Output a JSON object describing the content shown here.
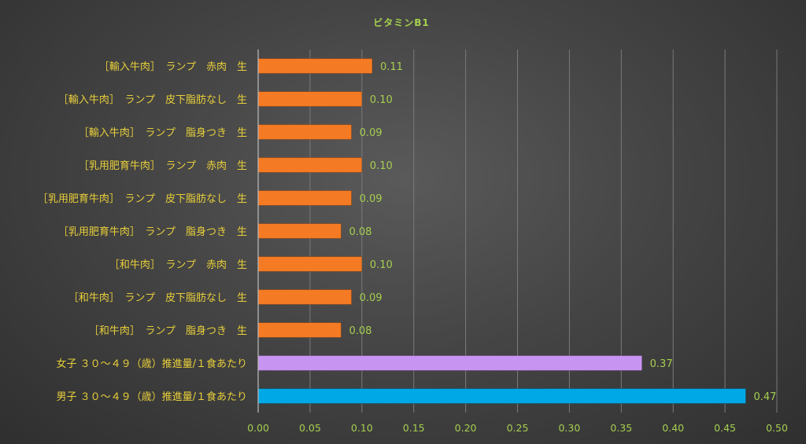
{
  "chart_data": {
    "type": "bar",
    "orientation": "horizontal",
    "title": "ビタミンB1",
    "categories": [
      "［輸入牛肉］　ランプ　赤肉　生",
      "［輸入牛肉］　ランプ　皮下脂肪なし　生",
      "［輸入牛肉］　ランプ　脂身つき　生",
      "［乳用肥育牛肉］　ランプ　赤肉　生",
      "［乳用肥育牛肉］　ランプ　皮下脂肪なし　生",
      "［乳用肥育牛肉］　ランプ　脂身つき　生",
      "［和牛肉］　ランプ　赤肉　生",
      "［和牛肉］　ランプ　皮下脂肪なし　生",
      "［和牛肉］　ランプ　脂身つき　生",
      "女子 ３０～４９（歳）推進量/１食あたり",
      "男子 ３０～４９（歳）推進量/１食あたり"
    ],
    "values": [
      0.11,
      0.1,
      0.09,
      0.1,
      0.09,
      0.08,
      0.1,
      0.09,
      0.08,
      0.37,
      0.47
    ],
    "value_labels": [
      "0.11",
      "0.10",
      "0.09",
      "0.10",
      "0.09",
      "0.08",
      "0.10",
      "0.09",
      "0.08",
      "0.37",
      "0.47"
    ],
    "bar_colors": [
      "#f47a23",
      "#f47a23",
      "#f47a23",
      "#f47a23",
      "#f47a23",
      "#f47a23",
      "#f47a23",
      "#f47a23",
      "#f47a23",
      "#c894f2",
      "#00a8e6"
    ],
    "xlim": [
      0,
      0.5
    ],
    "xticks": [
      "0.00",
      "0.05",
      "0.10",
      "0.15",
      "0.20",
      "0.25",
      "0.30",
      "0.35",
      "0.40",
      "0.45",
      "0.50"
    ],
    "xlabel": "",
    "ylabel": "",
    "grid": true,
    "legend": "none"
  }
}
